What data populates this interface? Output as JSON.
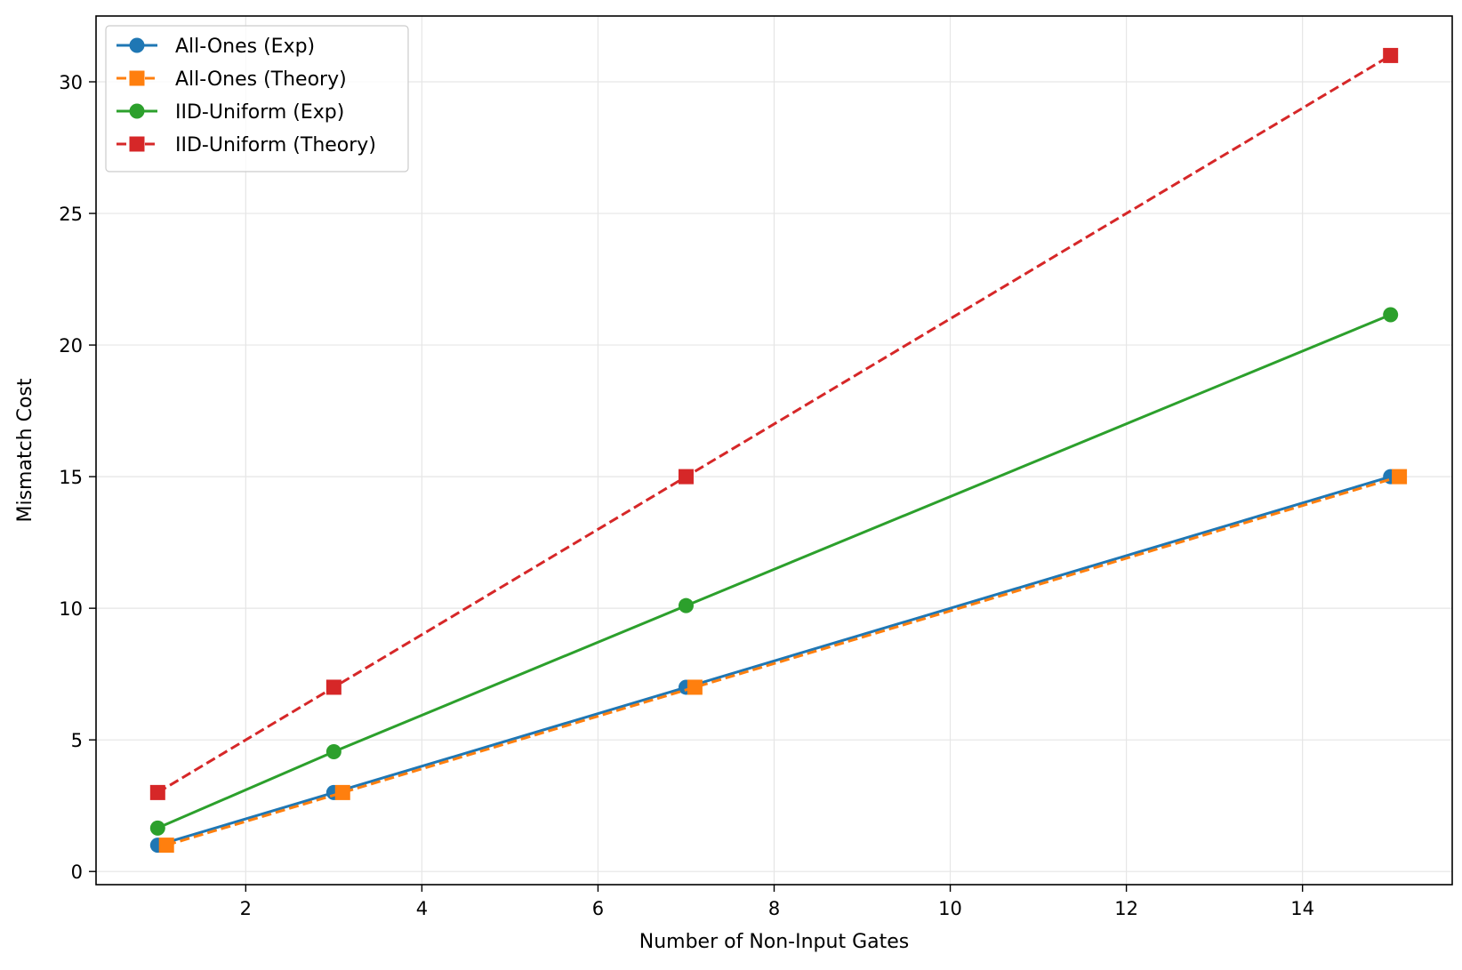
{
  "chart_data": {
    "type": "line",
    "title": "",
    "xlabel": "Number of Non-Input Gates",
    "ylabel": "Mismatch Cost",
    "xlim": [
      0.3,
      15.7
    ],
    "ylim": [
      -0.5,
      32.5
    ],
    "xticks": [
      2,
      4,
      6,
      8,
      10,
      12,
      14
    ],
    "yticks": [
      0,
      5,
      10,
      15,
      20,
      25,
      30
    ],
    "grid": true,
    "legend_position": "upper left",
    "series": [
      {
        "name": "All-Ones (Exp)",
        "color": "#1f77b4",
        "marker": "circle",
        "linestyle": "solid",
        "x": [
          1,
          3,
          7,
          15
        ],
        "y": [
          1,
          3,
          7,
          15
        ]
      },
      {
        "name": "All-Ones (Theory)",
        "color": "#ff7f0e",
        "marker": "square",
        "linestyle": "dashed",
        "x": [
          1.1,
          3.1,
          7.1,
          15.1
        ],
        "y": [
          1,
          3,
          7,
          15
        ]
      },
      {
        "name": "IID-Uniform (Exp)",
        "color": "#2ca02c",
        "marker": "circle",
        "linestyle": "solid",
        "x": [
          1,
          3,
          7,
          15
        ],
        "y": [
          1.65,
          4.55,
          10.1,
          21.15
        ]
      },
      {
        "name": "IID-Uniform (Theory)",
        "color": "#d62728",
        "marker": "square",
        "linestyle": "dashed",
        "x": [
          1,
          3,
          7,
          15
        ],
        "y": [
          3,
          7,
          15,
          31
        ]
      }
    ]
  }
}
